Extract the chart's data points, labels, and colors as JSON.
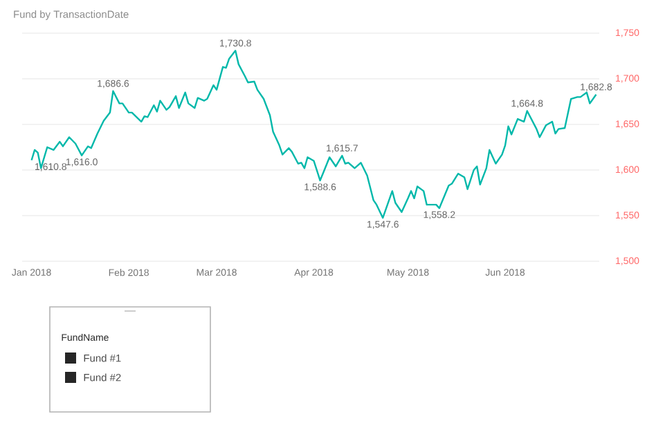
{
  "chart_data": [
    {
      "type": "line",
      "title": "Fund by TransactionDate",
      "color": "#01b8aa",
      "x": [
        "2018-01-01",
        "2018-01-02",
        "2018-01-03",
        "2018-01-04",
        "2018-01-06",
        "2018-01-08",
        "2018-01-10",
        "2018-01-11",
        "2018-01-13",
        "2018-01-15",
        "2018-01-17",
        "2018-01-19",
        "2018-01-20",
        "2018-01-22",
        "2018-01-24",
        "2018-01-26",
        "2018-01-27",
        "2018-01-29",
        "2018-01-30",
        "2018-02-01",
        "2018-02-02",
        "2018-02-05",
        "2018-02-06",
        "2018-02-07",
        "2018-02-09",
        "2018-02-10",
        "2018-02-11",
        "2018-02-13",
        "2018-02-14",
        "2018-02-16",
        "2018-02-17",
        "2018-02-19",
        "2018-02-20",
        "2018-02-22",
        "2018-02-23",
        "2018-02-25",
        "2018-02-26",
        "2018-02-28",
        "2018-03-01",
        "2018-03-03",
        "2018-03-04",
        "2018-03-05",
        "2018-03-07",
        "2018-03-08",
        "2018-03-10",
        "2018-03-11",
        "2018-03-13",
        "2018-03-14",
        "2018-03-16",
        "2018-03-18",
        "2018-03-19",
        "2018-03-21",
        "2018-03-22",
        "2018-03-24",
        "2018-03-25",
        "2018-03-27",
        "2018-03-28",
        "2018-03-29",
        "2018-03-30",
        "2018-04-01",
        "2018-04-03",
        "2018-04-04",
        "2018-04-06",
        "2018-04-08",
        "2018-04-10",
        "2018-04-11",
        "2018-04-12",
        "2018-04-14",
        "2018-04-16",
        "2018-04-18",
        "2018-04-20",
        "2018-04-21",
        "2018-04-23",
        "2018-04-26",
        "2018-04-27",
        "2018-04-29",
        "2018-05-01",
        "2018-05-02",
        "2018-05-03",
        "2018-05-04",
        "2018-05-06",
        "2018-05-07",
        "2018-05-09",
        "2018-05-10",
        "2018-05-11",
        "2018-05-14",
        "2018-05-15",
        "2018-05-17",
        "2018-05-19",
        "2018-05-20",
        "2018-05-22",
        "2018-05-23",
        "2018-05-24",
        "2018-05-26",
        "2018-05-27",
        "2018-05-29",
        "2018-05-31",
        "2018-06-01",
        "2018-06-02",
        "2018-06-03",
        "2018-06-05",
        "2018-06-07",
        "2018-06-08",
        "2018-06-11",
        "2018-06-12",
        "2018-06-14",
        "2018-06-16",
        "2018-06-17",
        "2018-06-18",
        "2018-06-20",
        "2018-06-22",
        "2018-06-24",
        "2018-06-25",
        "2018-06-27",
        "2018-06-28",
        "2018-06-30"
      ],
      "values": [
        1610.8,
        1622,
        1619,
        1602,
        1625,
        1622,
        1631,
        1626,
        1636,
        1629,
        1616.0,
        1626,
        1624,
        1640,
        1654,
        1663,
        1686.6,
        1673,
        1673,
        1663,
        1663,
        1653,
        1659,
        1658,
        1671,
        1664,
        1676,
        1666,
        1669,
        1681,
        1668,
        1685,
        1673,
        1668,
        1679,
        1676,
        1678,
        1693,
        1688,
        1713,
        1712,
        1722,
        1730.8,
        1716,
        1703,
        1696,
        1697,
        1688,
        1678,
        1660,
        1642,
        1627,
        1617,
        1624,
        1620,
        1607,
        1608,
        1602,
        1614,
        1610,
        1588.6,
        1597,
        1614,
        1604,
        1615.7,
        1607,
        1608,
        1602,
        1608,
        1594,
        1567,
        1562,
        1547.6,
        1577,
        1564,
        1554,
        1569,
        1577,
        1569,
        1582,
        1577,
        1562,
        1562,
        1562,
        1558.2,
        1583,
        1585,
        1596,
        1592,
        1579,
        1600,
        1604,
        1584,
        1602,
        1622,
        1607,
        1617,
        1627,
        1648,
        1639,
        1656,
        1653,
        1664.8,
        1645,
        1636,
        1649,
        1653,
        1640,
        1645,
        1646,
        1678,
        1680,
        1680,
        1685,
        1673,
        1682.8
      ],
      "value_labels": [
        "1,610.8",
        null,
        null,
        null,
        null,
        null,
        null,
        null,
        null,
        null,
        "1,616.0",
        null,
        null,
        null,
        null,
        null,
        "1,686.6",
        null,
        null,
        null,
        null,
        null,
        null,
        null,
        null,
        null,
        null,
        null,
        null,
        null,
        null,
        null,
        null,
        null,
        null,
        null,
        null,
        null,
        null,
        null,
        null,
        null,
        "1,730.8",
        null,
        null,
        null,
        null,
        null,
        null,
        null,
        null,
        null,
        null,
        null,
        null,
        null,
        null,
        null,
        null,
        null,
        "1,588.6",
        null,
        null,
        null,
        "1,615.7",
        null,
        null,
        null,
        null,
        null,
        null,
        null,
        "1,547.6",
        null,
        null,
        null,
        null,
        null,
        null,
        null,
        null,
        null,
        null,
        null,
        "1,558.2",
        null,
        null,
        null,
        null,
        null,
        null,
        null,
        null,
        null,
        null,
        null,
        null,
        null,
        null,
        null,
        null,
        null,
        "1,664.8",
        null,
        null,
        null,
        null,
        null,
        null,
        null,
        null,
        null,
        null,
        null,
        null,
        "1,682.8"
      ],
      "xlim": [
        "2017-12-29",
        "2018-07-01"
      ],
      "xticks": [
        {
          "value": "2018-01-01",
          "label": "Jan 2018"
        },
        {
          "value": "2018-02-01",
          "label": "Feb 2018"
        },
        {
          "value": "2018-03-01",
          "label": "Mar 2018"
        },
        {
          "value": "2018-04-01",
          "label": "Apr 2018"
        },
        {
          "value": "2018-05-01",
          "label": "May 2018"
        },
        {
          "value": "2018-06-01",
          "label": "Jun 2018"
        }
      ],
      "ylim": [
        1500,
        1750
      ],
      "yticks": [
        {
          "value": 1500,
          "label": "1,500"
        },
        {
          "value": 1550,
          "label": "1,550"
        },
        {
          "value": 1600,
          "label": "1,600"
        },
        {
          "value": 1650,
          "label": "1,650"
        },
        {
          "value": 1700,
          "label": "1,700"
        },
        {
          "value": 1750,
          "label": "1,750"
        }
      ],
      "grid": "y"
    },
    {
      "type": "other",
      "title": "FundName",
      "annotations": [
        "Fund #1",
        "Fund #2"
      ]
    }
  ]
}
